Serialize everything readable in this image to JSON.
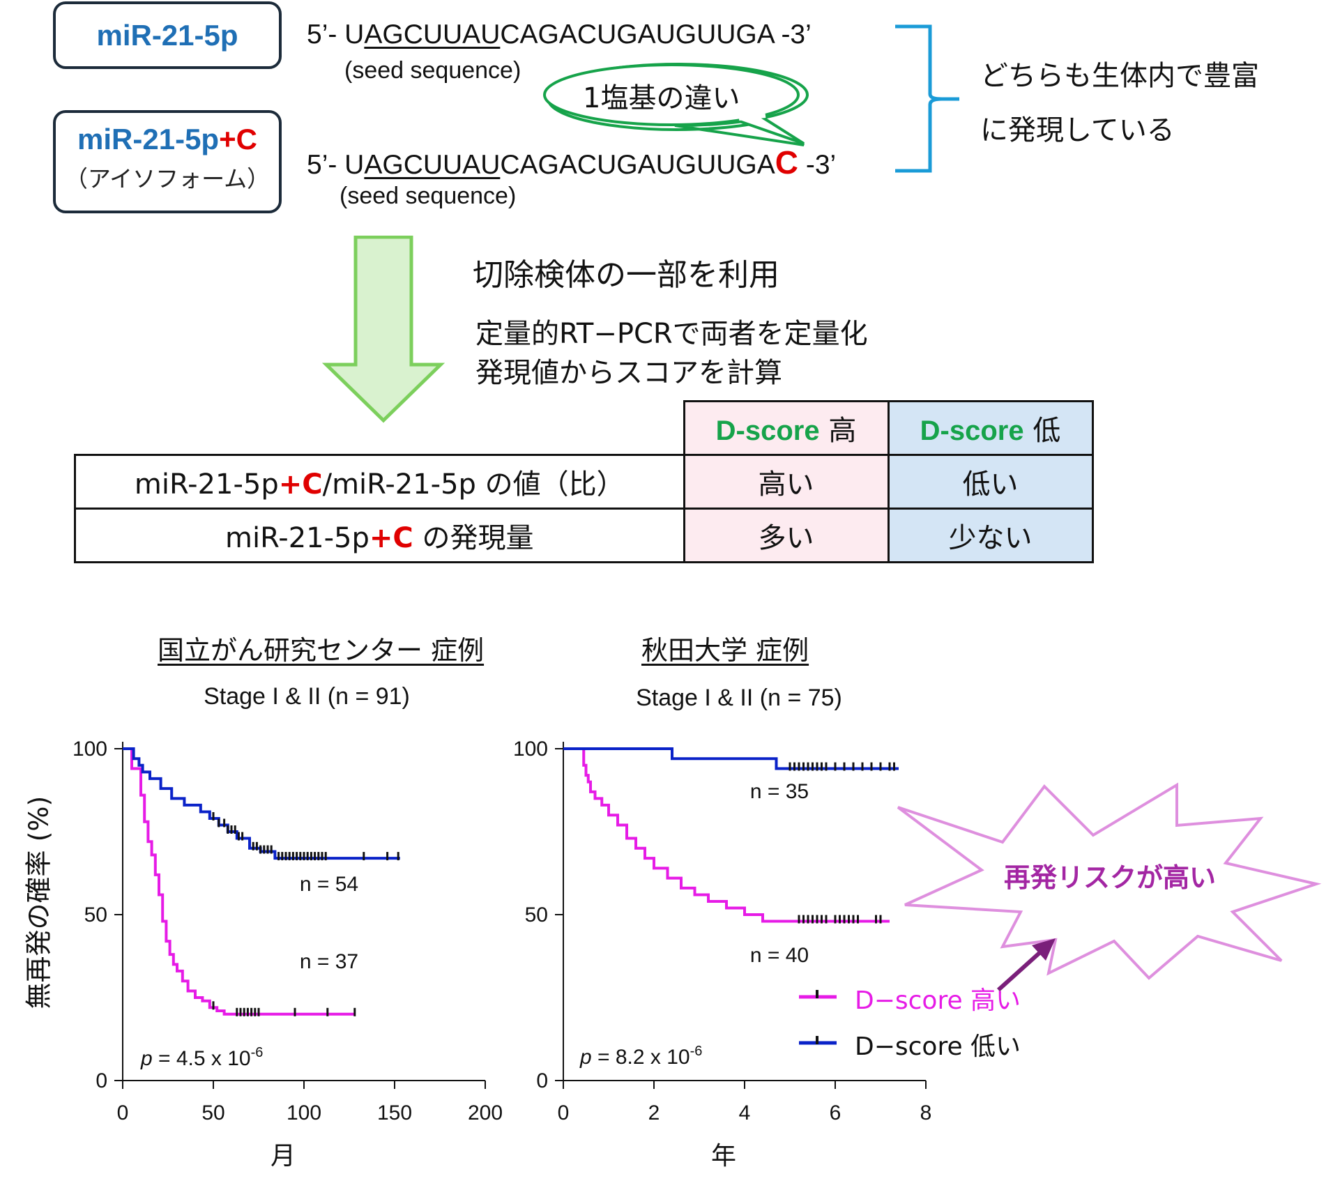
{
  "top": {
    "box1": {
      "name": "miR-21-5p"
    },
    "box2": {
      "name": "miR-21-5p",
      "suffix": "+C",
      "sub": "（アイソフォーム）"
    },
    "seq1": {
      "prefix": "5’- U",
      "seed": "AGCUUAU",
      "rest": "CAGACUGAUGUUGA",
      "end": " -3’"
    },
    "seq2": {
      "prefix": "5’- U",
      "seed": "AGCUUAU",
      "rest": "CAGACUGAUGUUGA",
      "extra": "C",
      "end": " -3’"
    },
    "seed_label": "(seed sequence)",
    "bubble": "1塩基の違い",
    "brace_note": [
      "どちらも生体内で豊富",
      "に発現している"
    ]
  },
  "steps": {
    "step1": "切除検体の一部を利用",
    "step2": [
      "定量的RT−PCRで両者を定量化",
      "発現値からスコアを計算"
    ]
  },
  "table": {
    "headers": [
      {
        "label": "D-score",
        "level": "高"
      },
      {
        "label": "D-score",
        "level": "低"
      }
    ],
    "rows": [
      {
        "label_pre": "miR-21-5p",
        "label_c": "+C",
        "label_post": "/miR-21-5p の値（比）",
        "high": "高い",
        "low": "低い"
      },
      {
        "label_pre": "miR-21-5p",
        "label_c": "+C",
        "label_post": " の発現量",
        "high": "多い",
        "low": "少ない"
      }
    ]
  },
  "colors": {
    "high": "#e61be6",
    "low": "#0a22c8",
    "accent_red": "#e00000",
    "green": "#16a34a",
    "blue_text": "#1f6fb5"
  },
  "y_axis_label": "無再発の確率 (%)",
  "starburst_text": "再発リスクが高い",
  "legend": [
    {
      "label": "D−score 高い",
      "series": "high"
    },
    {
      "label": "D−score 低い",
      "series": "low"
    }
  ],
  "chart_data": [
    {
      "type": "line",
      "title": "国立がん研究センター 症例",
      "subtitle": "Stage I & II (n = 91)",
      "xlabel": "月",
      "ylabel": "無再発の確率 (%)",
      "xlim": [
        0,
        200
      ],
      "ylim": [
        0,
        100
      ],
      "xticks": [
        0,
        50,
        100,
        150,
        200
      ],
      "yticks": [
        0,
        50,
        100
      ],
      "p_value": {
        "prefix": "p",
        "text": " = 4.5 x 10",
        "exp": "-6"
      },
      "series": [
        {
          "name": "D−score 高い",
          "n_label": "n = 37",
          "x": [
            0,
            5,
            8,
            10,
            12,
            14,
            16,
            18,
            20,
            22,
            24,
            26,
            28,
            30,
            33,
            36,
            40,
            44,
            48,
            52,
            56,
            128
          ],
          "y": [
            100,
            94,
            94,
            86,
            78,
            72,
            68,
            62,
            56,
            48,
            42,
            38,
            35,
            33,
            30,
            27,
            25,
            24,
            22,
            21,
            20,
            20
          ],
          "censor": [
            50,
            63,
            65,
            67,
            69,
            71,
            73,
            75,
            95,
            113,
            128
          ]
        },
        {
          "name": "D−score 低い",
          "n_label": "n = 54",
          "x": [
            0,
            6,
            9,
            11,
            15,
            21,
            27,
            34,
            43,
            48,
            53,
            58,
            63,
            70,
            76,
            84,
            153
          ],
          "y": [
            100,
            97,
            95,
            93,
            91,
            88,
            85,
            83,
            81,
            79,
            77,
            75,
            73,
            70,
            69,
            67,
            67
          ],
          "censor": [
            50,
            53,
            56,
            58,
            60,
            62,
            64,
            66,
            72,
            74,
            76,
            78,
            80,
            82,
            86,
            88,
            90,
            92,
            94,
            96,
            98,
            100,
            102,
            104,
            106,
            108,
            110,
            112,
            133,
            146,
            152
          ]
        }
      ]
    },
    {
      "type": "line",
      "title": "秋田大学 症例",
      "subtitle": "Stage I & II (n = 75)",
      "xlabel": "年",
      "ylabel": "無再発の確率 (%)",
      "xlim": [
        0,
        8
      ],
      "ylim": [
        0,
        100
      ],
      "xticks": [
        0,
        2,
        4,
        6,
        8
      ],
      "yticks": [
        0,
        50,
        100
      ],
      "p_value": {
        "prefix": "p",
        "text": " = 8.2 x 10",
        "exp": "-6"
      },
      "series": [
        {
          "name": "D−score 高い",
          "n_label": "n = 40",
          "x": [
            0,
            0.4,
            0.45,
            0.5,
            0.55,
            0.6,
            0.7,
            0.85,
            1.0,
            1.2,
            1.4,
            1.6,
            1.8,
            2.0,
            2.3,
            2.6,
            2.9,
            3.2,
            3.6,
            4.0,
            4.4,
            7.2
          ],
          "y": [
            100,
            100,
            95,
            92,
            90,
            87,
            85,
            83,
            80,
            77,
            73,
            70,
            67,
            64,
            61,
            58,
            56,
            54,
            52,
            50,
            48,
            48
          ],
          "censor": [
            5.2,
            5.3,
            5.4,
            5.5,
            5.6,
            5.7,
            5.8,
            6.0,
            6.1,
            6.2,
            6.3,
            6.4,
            6.5,
            6.9,
            7.0
          ]
        },
        {
          "name": "D−score 低い",
          "n_label": "n = 35",
          "x": [
            0,
            2.4,
            4.7,
            7.4
          ],
          "y": [
            100,
            97,
            94,
            94
          ],
          "censor": [
            5.0,
            5.1,
            5.2,
            5.3,
            5.4,
            5.5,
            5.6,
            5.7,
            5.8,
            6.0,
            6.2,
            6.4,
            6.6,
            6.8,
            7.0,
            7.2,
            7.3
          ]
        }
      ]
    }
  ]
}
